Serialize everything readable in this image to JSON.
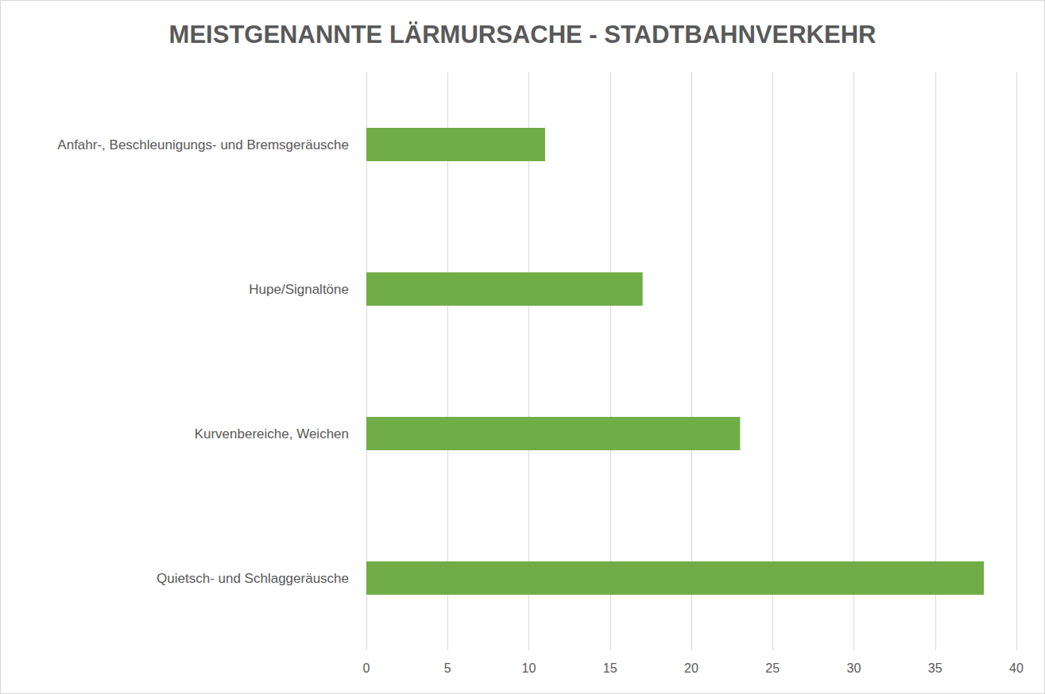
{
  "chart_data": {
    "type": "bar",
    "title": "MEISTGENANNTE LÄRMURSACHE - STADTBAHNVERKEHR",
    "orientation": "horizontal",
    "categories": [
      "Anfahr-, Beschleunigungs- und Bremsgeräusche",
      "Hupe/Signaltöne",
      "Kurvenbereiche, Weichen",
      "Quietsch- und Schlaggeräusche"
    ],
    "values": [
      11,
      17,
      23,
      38
    ],
    "color": "#70ad47",
    "xlim": [
      0,
      40
    ],
    "xticks": [
      0,
      5,
      10,
      15,
      20,
      25,
      30,
      35,
      40
    ],
    "grid": true
  }
}
